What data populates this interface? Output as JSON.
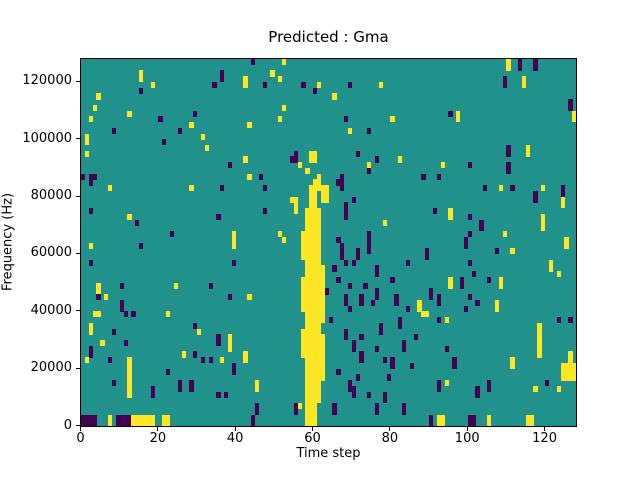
{
  "figure": {
    "title": "Predicted : Gma",
    "xlabel": "Time step",
    "ylabel": "Frequency (Hz)"
  },
  "chart_data": {
    "type": "heatmap",
    "title": "Predicted : Gma",
    "xlabel": "Time step",
    "ylabel": "Frequency (Hz)",
    "x_range": [
      0,
      128
    ],
    "y_range": [
      0,
      128000
    ],
    "x_ticks": [
      0,
      20,
      40,
      60,
      80,
      100,
      120
    ],
    "y_ticks": [
      0,
      20000,
      40000,
      60000,
      80000,
      100000,
      120000
    ],
    "grid": {
      "cols": 128,
      "rows": 64,
      "hz_per_row": 2000
    },
    "legend": "none",
    "colors": {
      "background_value_hex": "#21918c",
      "values": {
        "0": "#440154",
        "2": "#fde725"
      },
      "background_class": 1,
      "low_class": 0,
      "high_class": 2
    },
    "cells_format": "[time_step, freq_bin_from_bottom, class(0=dark,2=yellow), rows_tall(optional), cols_wide(optional)]",
    "cells": [
      [
        0,
        43,
        0
      ],
      [
        1,
        47,
        2
      ],
      [
        1,
        49,
        2,
        2
      ],
      [
        2,
        53,
        2
      ],
      [
        3,
        55,
        2
      ],
      [
        4,
        57,
        2
      ],
      [
        2,
        42,
        0,
        2
      ],
      [
        3,
        43,
        0
      ],
      [
        8,
        51,
        0
      ],
      [
        12,
        54,
        2
      ],
      [
        15,
        58,
        0
      ],
      [
        15,
        60,
        2,
        2
      ],
      [
        18,
        59,
        2
      ],
      [
        20,
        53,
        0
      ],
      [
        21,
        49,
        0
      ],
      [
        25,
        51,
        0
      ],
      [
        28,
        52,
        2
      ],
      [
        29,
        54,
        0
      ],
      [
        31,
        50,
        2
      ],
      [
        32,
        48,
        2
      ],
      [
        34,
        59,
        0
      ],
      [
        36,
        60,
        0,
        2
      ],
      [
        38,
        45,
        0
      ],
      [
        42,
        59,
        2,
        2
      ],
      [
        42,
        46,
        2
      ],
      [
        43,
        52,
        2
      ],
      [
        43,
        43,
        2
      ],
      [
        2,
        37,
        0
      ],
      [
        2,
        31,
        2
      ],
      [
        2,
        28,
        0
      ],
      [
        2,
        17,
        2
      ],
      [
        4,
        23,
        2,
        2
      ],
      [
        4,
        22,
        0
      ],
      [
        6,
        22,
        2
      ],
      [
        7,
        41,
        2
      ],
      [
        10,
        24,
        0
      ],
      [
        10,
        20,
        0,
        2
      ],
      [
        11,
        19,
        0
      ],
      [
        12,
        36,
        2
      ],
      [
        13,
        19,
        0
      ],
      [
        3,
        19,
        2,
        1,
        2
      ],
      [
        14,
        35,
        0
      ],
      [
        15,
        31,
        0
      ],
      [
        22,
        19,
        2
      ],
      [
        23,
        33,
        0
      ],
      [
        24,
        24,
        2
      ],
      [
        28,
        41,
        2
      ],
      [
        29,
        17,
        0
      ],
      [
        33,
        24,
        0
      ],
      [
        35,
        36,
        0
      ],
      [
        36,
        41,
        0
      ],
      [
        38,
        22,
        0
      ],
      [
        39,
        31,
        2,
        3
      ],
      [
        39,
        28,
        0
      ],
      [
        43,
        22,
        2
      ],
      [
        1,
        11,
        2
      ],
      [
        2,
        16,
        2
      ],
      [
        2,
        12,
        0,
        2
      ],
      [
        5,
        14,
        2
      ],
      [
        7,
        11,
        0
      ],
      [
        8,
        16,
        0
      ],
      [
        8,
        7,
        0
      ],
      [
        11,
        14,
        0
      ],
      [
        12,
        5,
        2,
        7
      ],
      [
        18,
        5,
        0,
        2
      ],
      [
        22,
        9,
        0
      ],
      [
        25,
        6,
        0,
        2
      ],
      [
        26,
        12,
        2
      ],
      [
        28,
        6,
        0,
        2
      ],
      [
        29,
        12,
        0
      ],
      [
        30,
        16,
        2
      ],
      [
        31,
        11,
        0
      ],
      [
        33,
        11,
        0
      ],
      [
        35,
        14,
        0,
        2
      ],
      [
        35,
        5,
        0
      ],
      [
        36,
        11,
        2
      ],
      [
        37,
        5,
        0
      ],
      [
        38,
        13,
        2,
        3
      ],
      [
        39,
        9,
        0,
        2
      ],
      [
        42,
        11,
        2,
        2
      ],
      [
        45,
        2,
        0,
        2
      ],
      [
        45,
        6,
        2,
        2
      ],
      [
        0,
        0,
        0,
        2,
        4
      ],
      [
        7,
        0,
        2,
        2
      ],
      [
        9,
        0,
        0,
        2,
        4
      ],
      [
        13,
        0,
        2,
        2,
        6
      ],
      [
        21,
        0,
        2,
        2,
        2
      ],
      [
        44,
        0,
        0,
        2
      ],
      [
        44,
        63,
        0
      ],
      [
        46,
        43,
        0
      ],
      [
        47,
        59,
        0
      ],
      [
        47,
        41,
        0
      ],
      [
        47,
        37,
        0
      ],
      [
        49,
        61,
        2
      ],
      [
        51,
        60,
        2
      ],
      [
        51,
        53,
        2
      ],
      [
        51,
        33,
        2
      ],
      [
        52,
        63,
        2
      ],
      [
        52,
        55,
        2
      ],
      [
        52,
        32,
        2
      ],
      [
        54,
        46,
        0
      ],
      [
        54,
        39,
        2
      ],
      [
        55,
        46,
        0,
        2
      ],
      [
        55,
        37,
        2,
        3
      ],
      [
        56,
        45,
        2
      ],
      [
        57,
        59,
        0
      ],
      [
        60,
        58,
        0
      ],
      [
        61,
        59,
        2
      ],
      [
        65,
        57,
        2
      ],
      [
        66,
        42,
        0
      ],
      [
        67,
        41,
        0,
        3
      ],
      [
        68,
        53,
        0
      ],
      [
        68,
        36,
        0,
        3
      ],
      [
        69,
        59,
        0
      ],
      [
        69,
        51,
        2
      ],
      [
        70,
        39,
        0
      ],
      [
        71,
        47,
        0
      ],
      [
        74,
        51,
        0
      ],
      [
        74,
        45,
        2
      ],
      [
        74,
        44,
        0
      ],
      [
        74,
        33,
        0
      ],
      [
        76,
        46,
        0
      ],
      [
        77,
        59,
        2
      ],
      [
        78,
        35,
        2
      ],
      [
        80,
        53,
        2
      ],
      [
        82,
        46,
        2
      ],
      [
        57,
        12,
        2,
        5
      ],
      [
        57,
        20,
        2,
        6
      ],
      [
        57,
        29,
        2,
        5
      ],
      [
        58,
        1,
        2,
        34
      ],
      [
        59,
        0,
        2,
        42
      ],
      [
        60,
        2,
        2,
        38
      ],
      [
        61,
        4,
        2,
        34
      ],
      [
        62,
        8,
        2,
        8
      ],
      [
        62,
        18,
        2,
        10
      ],
      [
        58,
        0,
        2,
        2,
        3
      ],
      [
        58,
        35,
        2,
        3
      ],
      [
        60,
        40,
        2,
        3
      ],
      [
        62,
        39,
        2,
        3,
        2
      ],
      [
        61,
        41,
        2,
        3
      ],
      [
        58,
        44,
        2
      ],
      [
        59,
        46,
        2,
        2,
        2
      ],
      [
        55,
        2,
        0,
        2
      ],
      [
        56,
        3,
        2
      ],
      [
        63,
        23,
        0
      ],
      [
        64,
        18,
        0
      ],
      [
        65,
        27,
        0
      ],
      [
        65,
        2,
        0,
        2
      ],
      [
        66,
        25,
        0
      ],
      [
        66,
        32,
        0
      ],
      [
        66,
        9,
        0
      ],
      [
        67,
        29,
        0,
        2
      ],
      [
        67,
        31,
        0
      ],
      [
        68,
        28,
        0
      ],
      [
        68,
        21,
        0,
        2
      ],
      [
        68,
        15,
        0,
        2
      ],
      [
        69,
        24,
        0
      ],
      [
        69,
        20,
        0
      ],
      [
        69,
        6,
        0,
        2
      ],
      [
        70,
        28,
        0
      ],
      [
        70,
        13,
        0,
        2
      ],
      [
        70,
        5,
        0,
        2
      ],
      [
        71,
        29,
        0,
        2
      ],
      [
        71,
        8,
        0
      ],
      [
        72,
        21,
        0,
        2
      ],
      [
        72,
        15,
        0
      ],
      [
        72,
        11,
        0,
        2
      ],
      [
        73,
        24,
        0
      ],
      [
        74,
        31,
        0,
        2
      ],
      [
        74,
        30,
        0
      ],
      [
        74,
        5,
        0
      ],
      [
        75,
        21,
        0
      ],
      [
        76,
        26,
        0,
        2
      ],
      [
        76,
        22,
        0,
        2
      ],
      [
        76,
        13,
        0
      ],
      [
        76,
        2,
        0,
        2
      ],
      [
        77,
        16,
        0,
        2
      ],
      [
        78,
        11,
        0
      ],
      [
        78,
        4,
        0,
        2
      ],
      [
        79,
        8,
        0
      ],
      [
        80,
        25,
        0
      ],
      [
        80,
        10,
        0,
        2
      ],
      [
        81,
        21,
        0,
        2
      ],
      [
        82,
        17,
        0,
        2
      ],
      [
        83,
        13,
        0,
        2
      ],
      [
        83,
        2,
        0,
        2
      ],
      [
        84,
        28,
        0
      ],
      [
        84,
        20,
        0
      ],
      [
        85,
        10,
        0
      ],
      [
        86,
        15,
        0
      ],
      [
        87,
        20,
        2,
        2
      ],
      [
        88,
        19,
        2
      ],
      [
        88,
        43,
        0
      ],
      [
        91,
        37,
        0
      ],
      [
        92,
        43,
        0
      ],
      [
        93,
        45,
        2
      ],
      [
        95,
        54,
        0
      ],
      [
        95,
        36,
        2,
        2
      ],
      [
        97,
        53,
        2,
        2
      ],
      [
        99,
        31,
        0,
        2
      ],
      [
        100,
        45,
        0
      ],
      [
        100,
        36,
        0
      ],
      [
        100,
        33,
        0
      ],
      [
        103,
        34,
        0,
        2
      ],
      [
        104,
        41,
        0
      ],
      [
        108,
        41,
        2
      ],
      [
        109,
        59,
        0,
        2
      ],
      [
        109,
        33,
        2
      ],
      [
        110,
        62,
        2,
        2
      ],
      [
        110,
        47,
        0,
        2
      ],
      [
        110,
        44,
        0,
        2
      ],
      [
        111,
        41,
        0
      ],
      [
        113,
        62,
        0,
        2
      ],
      [
        114,
        59,
        2,
        2
      ],
      [
        115,
        47,
        2,
        2
      ],
      [
        117,
        62,
        0,
        2
      ],
      [
        117,
        39,
        0,
        2
      ],
      [
        119,
        41,
        2
      ],
      [
        119,
        36,
        2
      ],
      [
        119,
        34,
        2,
        2
      ],
      [
        124,
        40,
        0,
        2
      ],
      [
        124,
        38,
        2,
        2
      ],
      [
        125,
        31,
        2,
        2
      ],
      [
        126,
        55,
        0,
        2
      ],
      [
        127,
        53,
        2,
        2
      ],
      [
        89,
        29,
        0,
        2
      ],
      [
        89,
        19,
        2
      ],
      [
        90,
        22,
        0,
        2
      ],
      [
        92,
        21,
        0,
        2
      ],
      [
        92,
        18,
        0
      ],
      [
        92,
        6,
        0,
        2
      ],
      [
        94,
        18,
        2
      ],
      [
        94,
        13,
        0
      ],
      [
        94,
        7,
        2
      ],
      [
        95,
        24,
        2,
        2
      ],
      [
        96,
        10,
        0,
        2
      ],
      [
        98,
        24,
        0,
        2
      ],
      [
        99,
        20,
        0
      ],
      [
        100,
        28,
        0
      ],
      [
        100,
        22,
        0
      ],
      [
        101,
        26,
        0
      ],
      [
        102,
        21,
        0
      ],
      [
        102,
        5,
        0,
        2
      ],
      [
        105,
        25,
        0
      ],
      [
        105,
        6,
        0,
        2
      ],
      [
        107,
        30,
        0
      ],
      [
        107,
        20,
        2,
        2
      ],
      [
        108,
        24,
        2,
        2
      ],
      [
        111,
        30,
        2
      ],
      [
        111,
        10,
        2,
        2
      ],
      [
        117,
        6,
        2
      ],
      [
        118,
        12,
        2,
        6
      ],
      [
        120,
        7,
        0
      ],
      [
        121,
        27,
        2,
        2
      ],
      [
        123,
        26,
        2
      ],
      [
        123,
        18,
        0
      ],
      [
        123,
        6,
        2
      ],
      [
        124,
        8,
        2,
        3,
        4
      ],
      [
        126,
        18,
        0
      ],
      [
        126,
        11,
        2,
        2
      ],
      [
        90,
        0,
        0,
        2
      ],
      [
        92,
        0,
        2,
        2,
        2
      ],
      [
        100,
        0,
        0,
        2,
        2
      ],
      [
        105,
        0,
        2,
        2
      ],
      [
        115,
        0,
        2,
        2,
        2
      ]
    ]
  }
}
